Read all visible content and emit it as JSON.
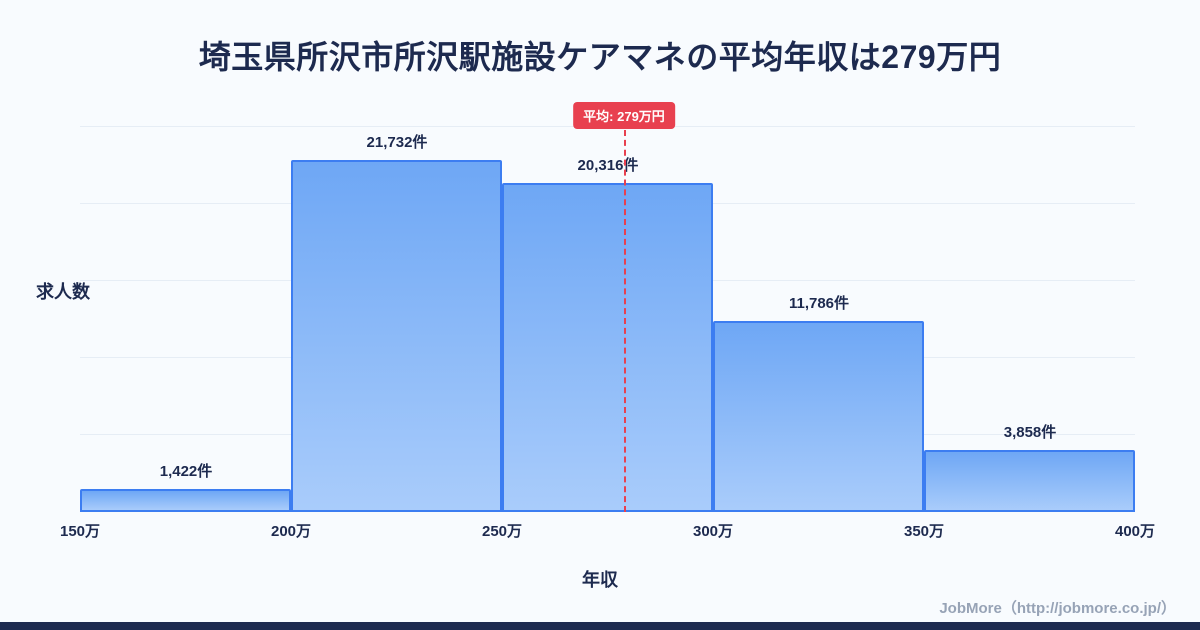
{
  "page": {
    "title": "埼玉県所沢市所沢駅施設ケアマネの平均年収は279万円",
    "footer_credit": "JobMore（http://jobmore.co.jp/）"
  },
  "chart_data": {
    "type": "bar",
    "title": "埼玉県所沢市所沢駅施設ケアマネの平均年収は279万円",
    "xlabel": "年収",
    "ylabel": "求人数",
    "x_tick_labels": [
      "150万",
      "200万",
      "250万",
      "300万",
      "350万",
      "400万"
    ],
    "x_range_man_yen": [
      150,
      400
    ],
    "bin_width_man_yen": 50,
    "categories": [
      "150万-200万",
      "200万-250万",
      "250万-300万",
      "300万-350万",
      "350万-400万"
    ],
    "values": [
      1422,
      21732,
      20316,
      11786,
      3858
    ],
    "value_labels": [
      "1,422件",
      "21,732件",
      "20,316件",
      "11,786件",
      "3,858件"
    ],
    "ylim": [
      0,
      22500
    ],
    "grid": true,
    "legend": "none",
    "average_line": {
      "value_man_yen": 279,
      "label": "平均: 279万円",
      "style": "dashed",
      "color": "#e8404f"
    },
    "colors": {
      "bar_fill_top": "#6ea7f5",
      "bar_fill_bottom": "#a9ccfb",
      "bar_border": "#3c7df1",
      "text": "#1d2a4f",
      "grid_line": "#e6edf5",
      "background": "#f8fbfe",
      "bottom_strip": "#1d2a4f",
      "credit_text": "#97a3b6"
    }
  }
}
